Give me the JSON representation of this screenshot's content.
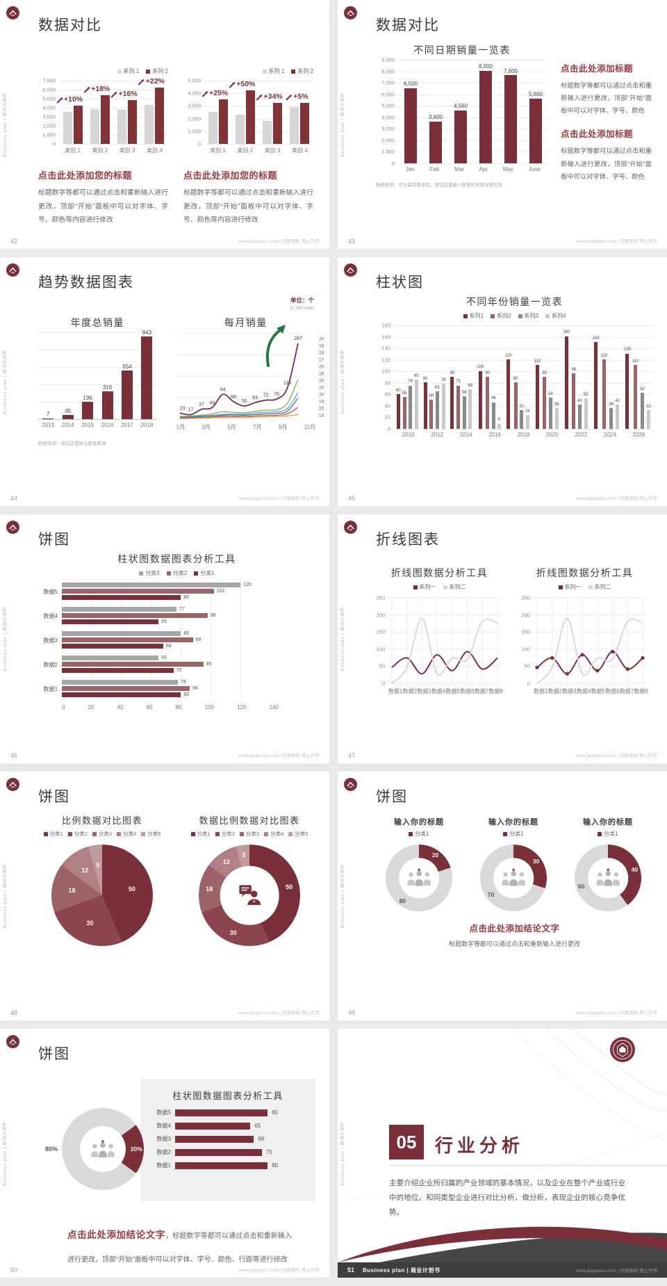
{
  "common": {
    "footer_site": "www.pptgenius.com | 内部资料 禁止外传",
    "side_text": "Business plan | 商业计划书"
  },
  "colors": {
    "primary": "#7b2f38",
    "mauve": "#9d6467",
    "gray_bar": "#d6d6d6",
    "accent_text": "#9a3a40"
  },
  "slides": [
    {
      "id": "s42",
      "number": "42",
      "title": "数据对比",
      "charts": [
        {
          "type": "vbar",
          "legend": [
            {
              "label": "系列 1",
              "color": "#d6d6d6"
            },
            {
              "label": "系列 2",
              "color": "#823338"
            }
          ],
          "yticks": [
            "7,000",
            "6,000",
            "5,000",
            "4,000",
            "3,000",
            "2,000",
            "1,000",
            "0"
          ],
          "ymax": 7000,
          "categories": [
            "类别 1",
            "类别 2",
            "类别 3",
            "类别 4"
          ],
          "series": [
            {
              "name": "系列 1",
              "color": "#d6d6d6",
              "values": [
                3500,
                3800,
                3700,
                4300
              ]
            },
            {
              "name": "系列 2",
              "color": "#823338",
              "values": [
                4200,
                5300,
                4800,
                6200
              ]
            }
          ],
          "group_labels": [
            "+10%",
            "+18%",
            "+16%",
            "+22%"
          ]
        },
        {
          "type": "vbar",
          "legend": [
            {
              "label": "系列 1",
              "color": "#d6d6d6"
            },
            {
              "label": "系列 2",
              "color": "#823338"
            }
          ],
          "yticks": [
            "5,000",
            "4,000",
            "3,000",
            "2,000",
            "1,000",
            "0"
          ],
          "ymax": 5000,
          "categories": [
            "类别 1",
            "类别 2",
            "类别 3",
            "类别 4"
          ],
          "series": [
            {
              "name": "系列 1",
              "color": "#d6d6d6",
              "values": [
                2500,
                2300,
                1800,
                2900
              ]
            },
            {
              "name": "系列 2",
              "color": "#823338",
              "values": [
                3500,
                4200,
                3200,
                3200
              ]
            }
          ],
          "group_labels": [
            "+25%",
            "+50%",
            "+34%",
            "+5%"
          ]
        }
      ],
      "blocks": [
        {
          "heading": "点击此处添加您的标题",
          "body": "标题数字等都可以通过点击和重新输入进行更改，顶部“开始”面板中可以对字体、字号、颜色等内容进行修改"
        },
        {
          "heading": "点击此处添加您的标题",
          "body": "标题数字等都可以通过点击和重新输入进行更改，顶部“开始”面板中可以对字体、字号、颜色等内容进行修改"
        }
      ]
    },
    {
      "id": "s43",
      "number": "43",
      "title": "数据对比",
      "chart": {
        "type": "vbar",
        "title": "不同日期销量一览表",
        "yticks": [
          "9,000",
          "8,000",
          "7,000",
          "6,000",
          "5,000",
          "4,000",
          "3,000",
          "2,000",
          "1,000",
          "0"
        ],
        "ymax": 9000,
        "categories": [
          "Jan",
          "Feb",
          "Mar",
          "Apr",
          "May",
          "June"
        ],
        "series": [
          {
            "name": "销量",
            "color": "#7b2f38",
            "values": [
              6500,
              3600,
              4560,
              8000,
              7600,
              5600
            ],
            "labels": [
              "6,500",
              "3,600",
              "4,560",
              "8,000",
              "7,600",
              "5,600"
            ]
          }
        ]
      },
      "note": "数据来源：尼尔森零售研究，请在这里输入数据的来源详情信息",
      "blocks": [
        {
          "heading": "点击此处添加标题",
          "body": "标题数字等都可以通过点击和重新输入进行更改，顶部“开始”面板中可以对字体、字号、颜色"
        },
        {
          "heading": "点击此处添加标题",
          "body": "标题数字等都可以通过点击和重新输入进行更改，顶部“开始”面板中可以对字体、字号、颜色"
        }
      ]
    },
    {
      "id": "s44",
      "number": "44",
      "title": "趋势数据图表",
      "unit": "单位：个",
      "unit_sub": "in '000 units",
      "bar_chart": {
        "type": "vbar",
        "title": "年度总销量",
        "ymax": 1000,
        "categories": [
          "2013",
          "2014",
          "2015",
          "2016",
          "2017",
          "2018"
        ],
        "series": [
          {
            "name": "年度总销量",
            "color": "#7b2f38",
            "values": [
              7,
              45,
              196,
              316,
              554,
              943
            ],
            "labels": [
              "7",
              "45",
              "196",
              "316",
              "554",
              "943"
            ]
          }
        ]
      },
      "line_chart": {
        "type": "line",
        "title": "每月销量",
        "ymax": 300,
        "x": [
          "1月",
          "3月",
          "5月",
          "7月",
          "9月",
          "11月"
        ],
        "series": [
          {
            "name": "系列主线",
            "color": "#7b2f38",
            "w": 1.8,
            "values": [
              23,
              17,
              37,
              44,
              94,
              66,
              50,
              63,
              72,
              76,
              118,
              287
            ],
            "labels": [
              "23",
              "17",
              "37",
              "44",
              "94",
              "66",
              "50",
              "63",
              "72",
              "76",
              "118",
              "287"
            ]
          },
          {
            "name": "辅线1",
            "color": "#8aab4a",
            "w": 1.3,
            "values": [
              10,
              12,
              15,
              20,
              28,
              26,
              24,
              30,
              34,
              36,
              60,
              150
            ]
          },
          {
            "name": "辅线2",
            "color": "#62a8c9",
            "w": 1.3,
            "values": [
              8,
              10,
              12,
              14,
              18,
              20,
              19,
              24,
              26,
              28,
              40,
              100
            ]
          },
          {
            "name": "辅线3",
            "color": "#3c78a8",
            "w": 1.3,
            "values": [
              6,
              8,
              10,
              12,
              15,
              16,
              15,
              18,
              20,
              22,
              30,
              80
            ]
          },
          {
            "name": "辅线4",
            "color": "#c0504d",
            "w": 1.3,
            "values": [
              4,
              5,
              6,
              8,
              10,
              11,
              10,
              12,
              14,
              15,
              20,
              45
            ]
          },
          {
            "name": "辅线5",
            "color": "#e8a33d",
            "w": 1.3,
            "values": [
              2,
              3,
              4,
              5,
              6,
              7,
              7,
              8,
              9,
              10,
              12,
              18
            ]
          }
        ],
        "end_labels": [
          "20",
          "18",
          "20",
          "17",
          "20",
          "16",
          "20",
          "15",
          "20",
          "14",
          "20",
          "13"
        ]
      },
      "note": "数据来源：请在这里标注数据来源"
    },
    {
      "id": "s45",
      "number": "45",
      "title": "柱状图",
      "chart": {
        "type": "vbar",
        "title": "不同年份销量一览表",
        "legend": [
          {
            "label": "系列1",
            "color": "#7b2f38"
          },
          {
            "label": "系列2",
            "color": "#9d6467"
          },
          {
            "label": "系列3",
            "color": "#8a8a8a"
          },
          {
            "label": "系列4",
            "color": "#c9c9c9"
          }
        ],
        "yticks": [
          "180",
          "160",
          "140",
          "120",
          "100",
          "80",
          "60",
          "40",
          "20",
          "0"
        ],
        "ymax": 180,
        "categories": [
          "2010",
          "2012",
          "2014",
          "2016",
          "2018",
          "2020",
          "2022",
          "2024",
          "2026"
        ],
        "series": [
          {
            "name": "系列1",
            "color": "#7b2f38",
            "values": [
              60,
              80,
              90,
              100,
              120,
              110,
              160,
              150,
              130
            ],
            "labels": [
              "60",
              "80",
              "90",
              "100",
              "120",
              "110",
              "160",
              "150",
              "130"
            ]
          },
          {
            "name": "系列2",
            "color": "#9d6467",
            "values": [
              55,
              50,
              75,
              90,
              80,
              90,
              96,
              120,
              110
            ],
            "labels": [
              "55",
              "50",
              "75",
              "90",
              "80",
              "90",
              "96",
              "120",
              "110"
            ]
          },
          {
            "name": "系列3",
            "color": "#8a8a8a",
            "values": [
              75,
              65,
              56,
              46,
              32,
              54,
              42,
              36,
              62
            ],
            "labels": [
              "75",
              "65",
              "56",
              "46",
              "32",
              "54",
              "42",
              "36",
              "62"
            ]
          },
          {
            "name": "系列4",
            "color": "#c9c9c9",
            "values": [
              85,
              78,
              68,
              9,
              24,
              36,
              53,
              42,
              32
            ],
            "labels": [
              "85",
              "78",
              "68",
              "9",
              "24",
              "36",
              "53",
              "42",
              "32"
            ]
          }
        ]
      }
    },
    {
      "id": "s46",
      "number": "46",
      "title": "饼图",
      "chart": {
        "type": "hbar",
        "title": "柱状图数据图表分析工具",
        "legend": [
          {
            "label": "分类3",
            "color": "#a6a6a6"
          },
          {
            "label": "分类2",
            "color": "#9d6467"
          },
          {
            "label": "分类1",
            "color": "#7b2f38"
          }
        ],
        "categories": [
          "数据5",
          "数据4",
          "数据3",
          "数据2",
          "数据1"
        ],
        "series": [
          {
            "name": "分类3",
            "color": "#a6a6a6",
            "values": [
              120,
              77,
              80,
              65,
              78
            ]
          },
          {
            "name": "分类2",
            "color": "#9d6467",
            "values": [
              102,
              98,
              88,
              95,
              86
            ]
          },
          {
            "name": "分类1",
            "color": "#7b2f38",
            "values": [
              80,
              65,
              68,
              75,
              80
            ]
          }
        ],
        "xticks": [
          "0",
          "20",
          "40",
          "60",
          "80",
          "100",
          "120",
          "140"
        ],
        "xmax": 140
      }
    },
    {
      "id": "s47",
      "number": "47",
      "title": "折线图表",
      "charts": [
        {
          "type": "line",
          "title": "折线图数据分析工具",
          "legend": [
            {
              "label": "系列一",
              "color": "#7b2f38"
            },
            {
              "label": "系列二",
              "color": "#d9d9d9"
            }
          ],
          "yticks": [
            "250",
            "200",
            "150",
            "100",
            "50",
            "0"
          ],
          "ymax": 250,
          "x": [
            "数据1",
            "数据2",
            "数据3",
            "数据4",
            "数据5",
            "数据6",
            "数据7",
            "数据8"
          ],
          "series": [
            {
              "name": "系列一",
              "color": "#7b2f38",
              "w": 2,
              "values": [
                50,
                80,
                30,
                90,
                40,
                100,
                45,
                80
              ]
            },
            {
              "name": "系列二",
              "color": "#d9d9d9",
              "w": 2,
              "values": [
                0,
                50,
                205,
                30,
                80,
                75,
                195,
                190
              ]
            }
          ]
        },
        {
          "type": "line",
          "title": "折线图数据分析工具",
          "legend": [
            {
              "label": "系列一",
              "color": "#7b2f38"
            },
            {
              "label": "系列二",
              "color": "#d9d9d9"
            }
          ],
          "yticks": [
            "250",
            "200",
            "150",
            "100",
            "50",
            "0"
          ],
          "ymax": 250,
          "x": [
            "数据1",
            "数据2",
            "数据3",
            "数据4",
            "数据5",
            "数据6",
            "数据7",
            "数据8"
          ],
          "series": [
            {
              "name": "系列一",
              "color": "#7b2f38",
              "w": 2,
              "markers": true,
              "values": [
                50,
                80,
                30,
                90,
                40,
                100,
                45,
                80
              ]
            },
            {
              "name": "系列二",
              "color": "#d9d9d9",
              "w": 2,
              "values": [
                0,
                50,
                205,
                30,
                80,
                75,
                195,
                190
              ]
            }
          ]
        }
      ]
    },
    {
      "id": "s48",
      "number": "48",
      "title": "饼图",
      "charts": [
        {
          "type": "pie",
          "title": "比例数据对比图表",
          "legend": [
            {
              "label": "分类1",
              "color": "#7b2f38"
            },
            {
              "label": "分类2",
              "color": "#8c454c"
            },
            {
              "label": "分类3",
              "color": "#9d6467"
            },
            {
              "label": "分类4",
              "color": "#b08084"
            },
            {
              "label": "分类5",
              "color": "#c29a9d"
            }
          ],
          "values": [
            50,
            30,
            18,
            12,
            5
          ],
          "labels": [
            "50",
            "30",
            "18",
            "12",
            "5"
          ],
          "colors": [
            "#7b2f38",
            "#8c454c",
            "#9d6467",
            "#b08084",
            "#c29a9d"
          ],
          "donut": false
        },
        {
          "type": "pie",
          "title": "数据比例数据对比图表",
          "legend": [
            {
              "label": "分类1",
              "color": "#7b2f38"
            },
            {
              "label": "分类2",
              "color": "#8c454c"
            },
            {
              "label": "分类3",
              "color": "#9d6467"
            },
            {
              "label": "分类4",
              "color": "#b08084"
            },
            {
              "label": "分类5",
              "color": "#c29a9d"
            }
          ],
          "values": [
            50,
            30,
            18,
            12,
            5
          ],
          "labels": [
            "50",
            "30",
            "18",
            "12",
            "5"
          ],
          "colors": [
            "#7b2f38",
            "#8c454c",
            "#9d6467",
            "#b08084",
            "#c29a9d"
          ],
          "donut": true,
          "icon": "person_chat"
        }
      ]
    },
    {
      "id": "s49",
      "number": "49",
      "title": "饼图",
      "groups": [
        {
          "type": "donut2",
          "title": "输入你的标题",
          "legend": [
            {
              "label": "分类1",
              "color": "#7b2f38"
            }
          ],
          "red": 20,
          "gray": 80,
          "red_label": "20",
          "gray_label": "80",
          "icon": "people"
        },
        {
          "type": "donut2",
          "title": "输入你的标题",
          "legend": [
            {
              "label": "分类1",
              "color": "#7b2f38"
            }
          ],
          "red": 30,
          "gray": 70,
          "red_label": "30",
          "gray_label": "70",
          "icon": "people"
        },
        {
          "type": "donut2",
          "title": "输入你的标题",
          "legend": [
            {
              "label": "分类1",
              "color": "#7b2f38"
            }
          ],
          "red": 40,
          "gray": 60,
          "red_label": "40",
          "gray_label": "60",
          "icon": "people"
        }
      ],
      "conclusion": {
        "heading": "点击此处添加结论文字",
        "body": "标题数字等都可以通过点击和重新输入进行更改"
      }
    },
    {
      "id": "s50",
      "number": "50",
      "title": "饼图",
      "donut": {
        "type": "donut2",
        "red": 20,
        "gray": 80,
        "red_label": "20%",
        "gray_label": "80%",
        "icon": "people",
        "from": 54,
        "out_label": true
      },
      "panel": {
        "type": "panelbars",
        "title": "柱状图数据图表分析工具",
        "categories": [
          "数据5",
          "数据4",
          "数据3",
          "数据2",
          "数据1"
        ],
        "values": [
          80,
          65,
          68,
          75,
          80
        ],
        "labels": [
          "80",
          "65",
          "68",
          "75",
          "80"
        ],
        "xmax": 90
      },
      "conclusion": {
        "heading": "点击此处添加结论文字",
        "body": "，标题数字等都可以通过点击和重新输入进行更改，顶部“开始”面板中可以对字体、字号、颜色、行距等进行修改"
      }
    },
    {
      "id": "s51",
      "number": "51",
      "big_number": "05",
      "title": "行业分析",
      "body": "主要介绍企业所归属的产业领域的基本情况，以及企业在整个产业或行业中的地位。和同类型企业进行对比分析，做分析，表现企业的核心竞争优势。",
      "brand": "Business plan | 商业计划书"
    }
  ]
}
